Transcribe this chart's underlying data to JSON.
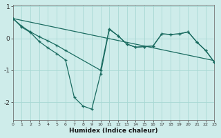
{
  "xlabel": "Humidex (Indice chaleur)",
  "bg_color": "#ceecea",
  "grid_color": "#a8d8d4",
  "line_color": "#1a6b60",
  "straight_line_x": [
    0,
    23
  ],
  "straight_line_y": [
    0.62,
    -0.7
  ],
  "curve1_x": [
    0,
    1,
    2,
    3,
    4,
    5,
    6,
    7,
    8,
    9,
    10,
    11,
    12,
    13,
    14,
    15,
    16,
    17,
    18,
    19,
    20,
    21,
    22,
    23
  ],
  "curve1_y": [
    0.62,
    0.35,
    0.18,
    -0.1,
    -0.3,
    -0.48,
    -0.68,
    -1.85,
    -2.12,
    -2.22,
    -1.12,
    0.28,
    0.08,
    -0.18,
    -0.28,
    -0.26,
    -0.24,
    0.14,
    0.12,
    0.14,
    0.2,
    -0.12,
    -0.38,
    -0.75
  ],
  "curve2_x": [
    0,
    1,
    2,
    3,
    4,
    5,
    6,
    10,
    11,
    12,
    13,
    14,
    15,
    16,
    17,
    18,
    19,
    20,
    21,
    22,
    23
  ],
  "curve2_y": [
    0.62,
    0.38,
    0.2,
    0.05,
    -0.08,
    -0.22,
    -0.38,
    -1.0,
    0.3,
    0.08,
    -0.18,
    -0.28,
    -0.26,
    -0.24,
    0.14,
    0.12,
    0.14,
    0.2,
    -0.12,
    -0.38,
    -0.75
  ],
  "xlim": [
    0,
    23
  ],
  "ylim": [
    -2.55,
    1.05
  ],
  "yticks": [
    1,
    0,
    -1,
    -2
  ],
  "xticks": [
    0,
    1,
    2,
    3,
    4,
    5,
    6,
    7,
    8,
    9,
    10,
    11,
    12,
    13,
    14,
    15,
    16,
    17,
    18,
    19,
    20,
    21,
    22,
    23
  ]
}
